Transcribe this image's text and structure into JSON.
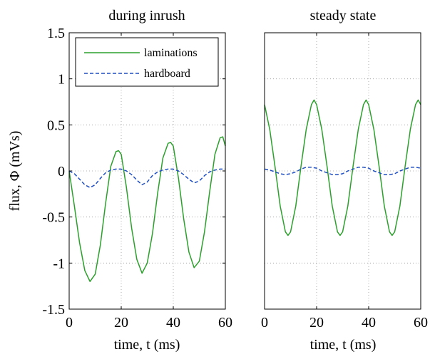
{
  "chart_data": [
    {
      "type": "line",
      "title": "during inrush",
      "xlabel": "time, t (ms)",
      "ylabel": "flux, Φ (mVs)",
      "xlim": [
        0,
        60
      ],
      "ylim": [
        -1.5,
        1.5
      ],
      "xticks": [
        "0",
        "20",
        "40",
        "60"
      ],
      "yticks": [
        "1.5",
        "1",
        "0.5",
        "0",
        "-0.5",
        "-1",
        "-1.5"
      ],
      "grid": true,
      "legend": {
        "position": "top-left",
        "entries": [
          "laminations",
          "hardboard"
        ]
      },
      "series": [
        {
          "name": "laminations",
          "color": "#2ca02c",
          "style": "solid",
          "x": [
            0,
            2,
            4,
            6,
            8,
            10,
            12,
            14,
            16,
            18,
            19,
            20,
            22,
            24,
            26,
            28,
            30,
            32,
            34,
            36,
            38,
            39,
            40,
            42,
            44,
            46,
            48,
            50,
            52,
            54,
            56,
            58,
            59,
            60
          ],
          "y": [
            0.0,
            -0.38,
            -0.78,
            -1.08,
            -1.2,
            -1.12,
            -0.8,
            -0.35,
            0.05,
            0.21,
            0.22,
            0.18,
            -0.18,
            -0.62,
            -0.96,
            -1.11,
            -1.0,
            -0.68,
            -0.24,
            0.14,
            0.3,
            0.31,
            0.27,
            -0.08,
            -0.52,
            -0.88,
            -1.05,
            -0.98,
            -0.66,
            -0.22,
            0.18,
            0.36,
            0.37,
            0.27
          ]
        },
        {
          "name": "hardboard",
          "color": "#1f4fc2",
          "style": "dashed",
          "x": [
            0,
            2,
            4,
            6,
            8,
            10,
            12,
            14,
            16,
            18,
            20,
            22,
            24,
            26,
            28,
            30,
            32,
            34,
            36,
            38,
            40,
            42,
            44,
            46,
            48,
            50,
            52,
            54,
            56,
            58,
            60
          ],
          "y": [
            0.0,
            -0.03,
            -0.09,
            -0.15,
            -0.18,
            -0.15,
            -0.08,
            -0.02,
            0.01,
            0.02,
            0.02,
            0.0,
            -0.04,
            -0.1,
            -0.15,
            -0.12,
            -0.05,
            -0.01,
            0.01,
            0.02,
            0.02,
            0.0,
            -0.04,
            -0.09,
            -0.13,
            -0.11,
            -0.05,
            -0.01,
            0.01,
            0.02,
            0.02
          ]
        }
      ]
    },
    {
      "type": "line",
      "title": "steady state",
      "xlabel": "time, t (ms)",
      "ylabel": "",
      "xlim": [
        0,
        60
      ],
      "ylim": [
        -1.5,
        1.5
      ],
      "xticks": [
        "0",
        "20",
        "40",
        "60"
      ],
      "yticks": [],
      "grid": true,
      "series": [
        {
          "name": "laminations",
          "color": "#2ca02c",
          "style": "solid",
          "x": [
            0,
            2,
            4,
            6,
            8,
            9,
            10,
            12,
            14,
            16,
            18,
            19,
            20,
            22,
            24,
            26,
            28,
            29,
            30,
            32,
            34,
            36,
            38,
            39,
            40,
            42,
            44,
            46,
            48,
            49,
            50,
            52,
            54,
            56,
            58,
            59,
            60
          ],
          "y": [
            0.72,
            0.45,
            0.05,
            -0.38,
            -0.66,
            -0.7,
            -0.66,
            -0.38,
            0.05,
            0.45,
            0.72,
            0.77,
            0.72,
            0.45,
            0.05,
            -0.38,
            -0.66,
            -0.7,
            -0.66,
            -0.38,
            0.05,
            0.45,
            0.72,
            0.77,
            0.72,
            0.45,
            0.05,
            -0.38,
            -0.66,
            -0.7,
            -0.66,
            -0.38,
            0.05,
            0.45,
            0.72,
            0.77,
            0.72
          ]
        },
        {
          "name": "hardboard",
          "color": "#1f4fc2",
          "style": "dashed",
          "x": [
            0,
            2,
            4,
            6,
            8,
            10,
            12,
            14,
            16,
            18,
            20,
            22,
            24,
            26,
            28,
            30,
            32,
            34,
            36,
            38,
            40,
            42,
            44,
            46,
            48,
            50,
            52,
            54,
            56,
            58,
            60
          ],
          "y": [
            0.02,
            0.01,
            -0.01,
            -0.03,
            -0.04,
            -0.03,
            -0.01,
            0.02,
            0.04,
            0.04,
            0.03,
            0.0,
            -0.02,
            -0.04,
            -0.04,
            -0.03,
            0.0,
            0.02,
            0.04,
            0.04,
            0.03,
            0.0,
            -0.02,
            -0.04,
            -0.04,
            -0.03,
            0.0,
            0.02,
            0.04,
            0.04,
            0.03
          ]
        }
      ]
    }
  ]
}
